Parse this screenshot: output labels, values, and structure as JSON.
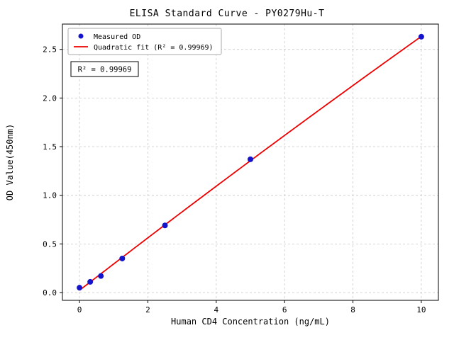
{
  "figure": {
    "background": "#ffffff"
  },
  "chart_data": {
    "type": "scatter",
    "title": "ELISA Standard Curve - PY0279Hu-T",
    "xlabel": "Human CD4 Concentration (ng/mL)",
    "ylabel": "OD Value(450nm)",
    "xlim": [
      -0.5,
      10.5
    ],
    "ylim": [
      -0.08,
      2.76
    ],
    "xticks": {
      "values": [
        0,
        2,
        4,
        6,
        8,
        10
      ],
      "labels": [
        "0",
        "2",
        "4",
        "6",
        "8",
        "10"
      ]
    },
    "yticks": {
      "values": [
        0.0,
        0.5,
        1.0,
        1.5,
        2.0,
        2.5
      ],
      "labels": [
        "0.0",
        "0.5",
        "1.0",
        "1.5",
        "2.0",
        "2.5"
      ]
    },
    "grid": true,
    "grid_style": {
      "color": "#c9c9c9",
      "dash": "3,3"
    },
    "legend": {
      "position": "upper-left",
      "items": [
        {
          "label": "Measured OD",
          "marker": "circle",
          "color": "#1414cd"
        },
        {
          "label": "Quadratic fit (R² = 0.99969)",
          "marker": "line",
          "color": "#ee0000"
        }
      ]
    },
    "annotation": {
      "text": "R² = 0.99969"
    },
    "series": [
      {
        "name": "Measured OD",
        "type": "scatter",
        "color": "#1414cd",
        "x": [
          0,
          0.313,
          0.625,
          1.25,
          2.5,
          5,
          10
        ],
        "y": [
          0.05,
          0.11,
          0.17,
          0.35,
          0.69,
          1.37,
          2.63
        ]
      },
      {
        "name": "Quadratic fit",
        "type": "quadratic-fit",
        "color": "#ee0000",
        "fit_of": "Measured OD",
        "x_range": [
          0,
          10
        ],
        "r_squared": 0.99969
      }
    ]
  }
}
